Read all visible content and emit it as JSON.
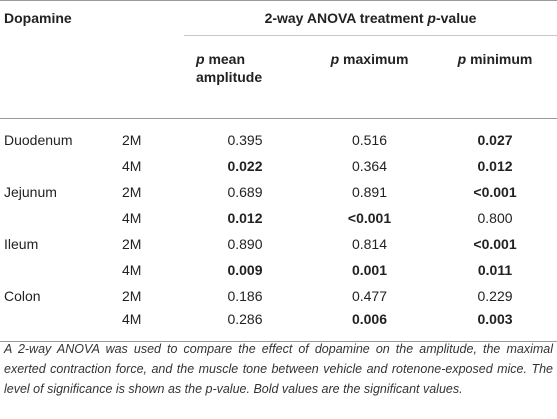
{
  "table": {
    "header": {
      "row_label": "Dopamine",
      "group_prefix": "2-way ANOVA treatment ",
      "group_italic": "p",
      "group_suffix": "-value",
      "columns": [
        {
          "p": "p",
          "label": " mean",
          "label2": "amplitude"
        },
        {
          "p": "p",
          "label": " maximum",
          "label2": ""
        },
        {
          "p": "p",
          "label": " minimum",
          "label2": ""
        }
      ]
    },
    "rows": [
      {
        "tissue": "Duodenum",
        "age": "2M",
        "amp": "0.395",
        "max": "0.516",
        "min": "0.027"
      },
      {
        "tissue": "",
        "age": "4M",
        "amp": "0.022",
        "max": "0.364",
        "min": "0.012"
      },
      {
        "tissue": "Jejunum",
        "age": "2M",
        "amp": "0.689",
        "max": "0.891",
        "min": "<0.001"
      },
      {
        "tissue": "",
        "age": "4M",
        "amp": "0.012",
        "max": "<0.001",
        "min": "0.800"
      },
      {
        "tissue": "Ileum",
        "age": "2M",
        "amp": "0.890",
        "max": "0.814",
        "min": "<0.001"
      },
      {
        "tissue": "",
        "age": "4M",
        "amp": "0.009",
        "max": "0.001",
        "min": "0.011"
      },
      {
        "tissue": "Colon",
        "age": "2M",
        "amp": "0.186",
        "max": "0.477",
        "min": "0.229"
      },
      {
        "tissue": "",
        "age": "4M",
        "amp": "0.286",
        "max": "0.006",
        "min": "0.003"
      }
    ]
  },
  "footnote": "A 2-way ANOVA was used to compare the effect of dopamine on the amplitude, the maximal exerted contraction force, and the muscle tone between vehicle and rotenone-exposed mice. The level of significance is shown as the p-value. Bold values are the significant values."
}
